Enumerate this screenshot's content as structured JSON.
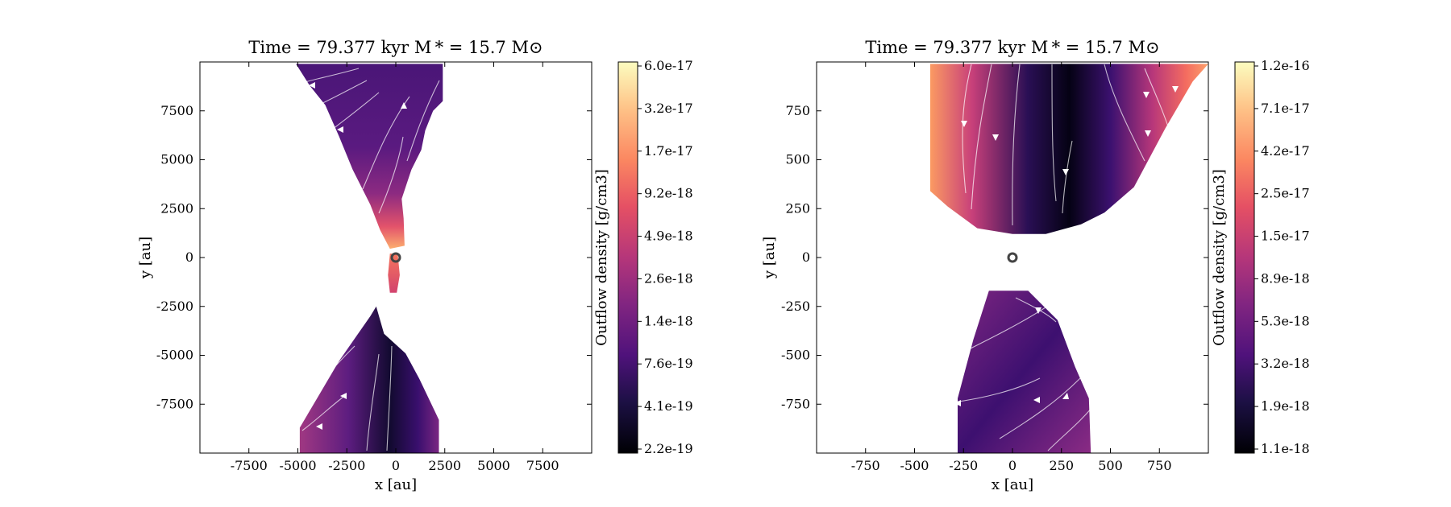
{
  "chart_data": [
    {
      "type": "heatmap",
      "title": "Time = 79.377 kyr    M * = 15.7 M⊙",
      "xlabel": "x [au]",
      "ylabel": "y [au]",
      "xlim": [
        -10000,
        10000
      ],
      "ylim": [
        -10000,
        10000
      ],
      "xticks": [
        -7500,
        -5000,
        -2500,
        0,
        2500,
        5000,
        7500
      ],
      "yticks": [
        -7500,
        -5000,
        -2500,
        0,
        2500,
        5000,
        7500
      ],
      "xtick_labels": [
        "-7500",
        "-5000",
        "-2500",
        "0",
        "2500",
        "5000",
        "7500"
      ],
      "ytick_labels": [
        "-7500",
        "-5000",
        "-2500",
        "0",
        "2500",
        "5000",
        "7500"
      ],
      "colorbar_label": "Outflow density [g/cm3]",
      "colorbar_ticks": [
        "6.0e-17",
        "3.2e-17",
        "1.7e-17",
        "9.2e-18",
        "4.9e-18",
        "2.6e-18",
        "1.4e-18",
        "7.6e-19",
        "4.1e-19",
        "2.2e-19"
      ],
      "colormap": "magma",
      "star_position": [
        0,
        0
      ],
      "upper_lobe": [
        [
          -5100,
          9900
        ],
        [
          2400,
          9900
        ],
        [
          2400,
          8000
        ],
        [
          1900,
          7500
        ],
        [
          1500,
          6500
        ],
        [
          1300,
          5500
        ],
        [
          800,
          4500
        ],
        [
          300,
          3000
        ],
        [
          400,
          2000
        ],
        [
          450,
          600
        ],
        [
          -300,
          450
        ],
        [
          -800,
          1400
        ],
        [
          -1300,
          2700
        ],
        [
          -2200,
          4500
        ],
        [
          -2900,
          6200
        ],
        [
          -3600,
          7800
        ],
        [
          -4400,
          8800
        ]
      ],
      "core_lobe": [
        [
          -300,
          200
        ],
        [
          100,
          200
        ],
        [
          200,
          -900
        ],
        [
          50,
          -1800
        ],
        [
          -300,
          -1800
        ],
        [
          -400,
          -900
        ]
      ],
      "lower_lobe": [
        [
          -1000,
          -2500
        ],
        [
          -600,
          -3900
        ],
        [
          500,
          -4900
        ],
        [
          1200,
          -6200
        ],
        [
          2200,
          -8300
        ],
        [
          2200,
          -10000
        ],
        [
          -4900,
          -10000
        ],
        [
          -4900,
          -8700
        ],
        [
          -3900,
          -7000
        ],
        [
          -2900,
          -5300
        ],
        [
          -2000,
          -4000
        ],
        [
          -1300,
          -3000
        ]
      ],
      "grid": false
    },
    {
      "type": "heatmap",
      "title": "Time = 79.377 kyr    M * = 15.7 M⊙",
      "xlabel": "x [au]",
      "ylabel": "y [au]",
      "xlim": [
        -1000,
        1000
      ],
      "ylim": [
        -1000,
        1000
      ],
      "xticks": [
        -750,
        -500,
        -250,
        0,
        250,
        500,
        750
      ],
      "yticks": [
        -750,
        -500,
        -250,
        0,
        250,
        500,
        750
      ],
      "xtick_labels": [
        "-750",
        "-500",
        "-250",
        "0",
        "250",
        "500",
        "750"
      ],
      "ytick_labels": [
        "-750",
        "-500",
        "-250",
        "0",
        "250",
        "500",
        "750"
      ],
      "colorbar_label": "Outflow density [g/cm3]",
      "colorbar_ticks": [
        "1.2e-16",
        "7.1e-17",
        "4.2e-17",
        "2.5e-17",
        "1.5e-17",
        "8.9e-18",
        "5.3e-18",
        "3.2e-18",
        "1.9e-18",
        "1.1e-18"
      ],
      "colormap": "magma",
      "star_position": [
        0,
        0
      ],
      "upper_lobe": [
        [
          -420,
          990
        ],
        [
          1000,
          990
        ],
        [
          920,
          900
        ],
        [
          780,
          660
        ],
        [
          620,
          360
        ],
        [
          470,
          230
        ],
        [
          350,
          170
        ],
        [
          170,
          120
        ],
        [
          0,
          120
        ],
        [
          -180,
          150
        ],
        [
          -330,
          260
        ],
        [
          -420,
          340
        ]
      ],
      "lower_lobe": [
        [
          -120,
          -170
        ],
        [
          80,
          -170
        ],
        [
          230,
          -320
        ],
        [
          320,
          -560
        ],
        [
          390,
          -720
        ],
        [
          400,
          -1000
        ],
        [
          -280,
          -1000
        ],
        [
          -280,
          -720
        ],
        [
          -200,
          -420
        ]
      ],
      "grid": false
    }
  ]
}
